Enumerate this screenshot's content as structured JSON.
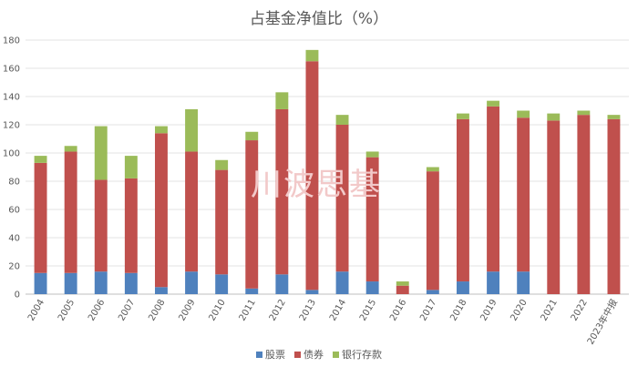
{
  "chart_data": {
    "type": "bar",
    "stacked": true,
    "title": "占基金净值比（%）",
    "watermark": "川波思基",
    "categories": [
      "2004",
      "2005",
      "2006",
      "2007",
      "2008",
      "2009",
      "2010",
      "2011",
      "2012",
      "2013",
      "2014",
      "2015",
      "2016",
      "2017",
      "2018",
      "2019",
      "2020",
      "2021",
      "2022",
      "2023年中报"
    ],
    "series": [
      {
        "name": "股票",
        "color": "#4f81bd",
        "values": [
          15,
          15,
          16,
          15,
          5,
          16,
          14,
          4,
          14,
          3,
          16,
          9,
          0,
          3,
          9,
          16,
          16,
          0,
          0,
          0
        ]
      },
      {
        "name": "债券",
        "color": "#c0504d",
        "values": [
          78,
          86,
          65,
          67,
          109,
          85,
          74,
          105,
          117,
          162,
          104,
          88,
          6,
          84,
          115,
          117,
          109,
          123,
          127,
          124
        ]
      },
      {
        "name": "银行存款",
        "color": "#9bbb59",
        "values": [
          5,
          4,
          38,
          16,
          5,
          30,
          7,
          6,
          12,
          8,
          7,
          4,
          3,
          3,
          4,
          4,
          5,
          5,
          3,
          3
        ]
      }
    ],
    "ylim": [
      0,
      180
    ],
    "yticks": [
      0,
      20,
      40,
      60,
      80,
      100,
      120,
      140,
      160,
      180
    ],
    "grid": true,
    "legend": "bottom",
    "xlabel": "",
    "ylabel": ""
  }
}
